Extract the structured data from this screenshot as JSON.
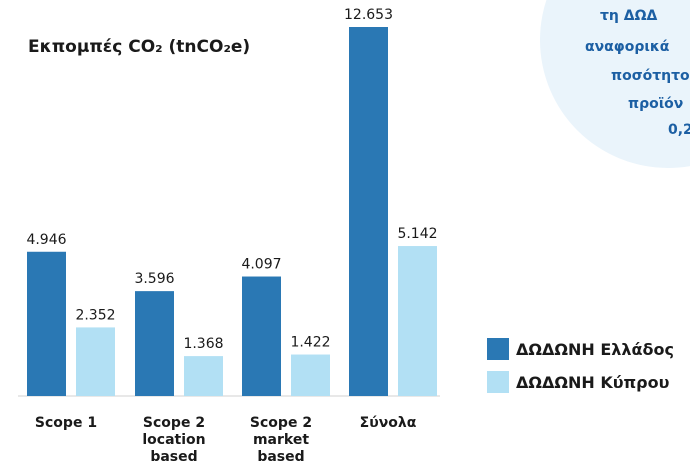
{
  "chart_data": {
    "type": "bar",
    "title": "Εκπομπές CO₂ (tnCO₂e)",
    "categories": [
      [
        "Scope 1"
      ],
      [
        "Scope 2",
        "location",
        "based"
      ],
      [
        "Scope 2",
        "market",
        "based"
      ],
      [
        "Σύνολα"
      ]
    ],
    "series": [
      {
        "name": "ΔΩΔΩΝΗ Ελλάδος",
        "color": "#2a78b4",
        "values": [
          4946,
          3596,
          4097,
          12653
        ],
        "value_labels": [
          "4.946",
          "3.596",
          "4.097",
          "12.653"
        ]
      },
      {
        "name": "ΔΩΔΩΝΗ Κύπρου",
        "color": "#b2e0f4",
        "values": [
          2352,
          1368,
          1422,
          5142
        ],
        "value_labels": [
          "2.352",
          "1.368",
          "1.422",
          "5.142"
        ]
      }
    ],
    "annotation": [
      "τη ΔΩΔ",
      "αναφορικά",
      "ποσότητο",
      "προϊόν",
      "0,2"
    ]
  }
}
